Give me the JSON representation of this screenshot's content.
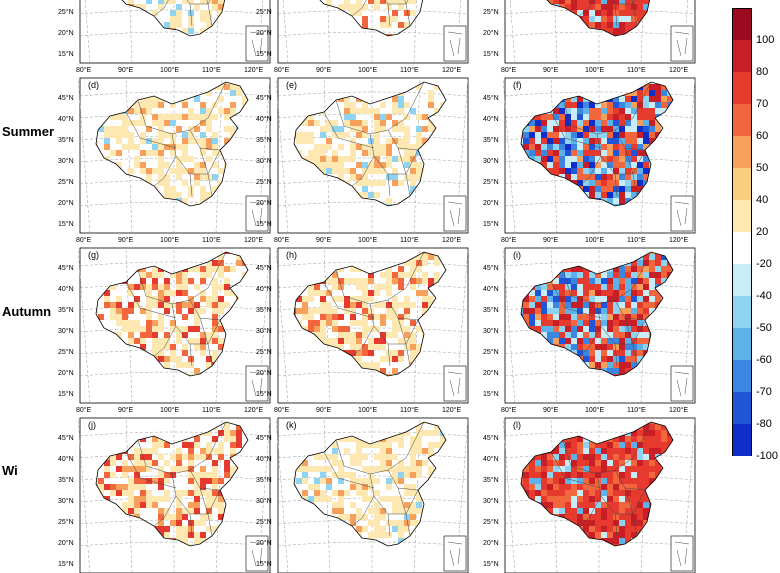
{
  "seasons": [
    "Summer",
    "Autumn",
    "Wi"
  ],
  "panels": [
    {
      "id": "a",
      "label": "",
      "pattern": "weak"
    },
    {
      "id": "b",
      "label": "",
      "pattern": "weak-south"
    },
    {
      "id": "c",
      "label": "",
      "pattern": "strong"
    },
    {
      "id": "d",
      "label": "(d)",
      "pattern": "weak"
    },
    {
      "id": "e",
      "label": "(e)",
      "pattern": "weak"
    },
    {
      "id": "f",
      "label": "(f)",
      "pattern": "mixed-blue"
    },
    {
      "id": "g",
      "label": "(g)",
      "pattern": "moderate"
    },
    {
      "id": "h",
      "label": "(h)",
      "pattern": "moderate"
    },
    {
      "id": "i",
      "label": "(i)",
      "pattern": "strong-mixed"
    },
    {
      "id": "j",
      "label": "(j)",
      "pattern": "moderate"
    },
    {
      "id": "k",
      "label": "(k)",
      "pattern": "weak"
    },
    {
      "id": "l",
      "label": "(l)",
      "pattern": "strong"
    }
  ],
  "lat_labels": [
    "45°N",
    "40°N",
    "35°N",
    "30°N",
    "25°N",
    "20°N",
    "15°N"
  ],
  "lon_labels": [
    "80°E",
    "90°E",
    "100°E",
    "110°E",
    "120°E"
  ],
  "colorbar": {
    "ticks": [
      "100",
      "80",
      "70",
      "60",
      "50",
      "40",
      "20",
      "-20",
      "-40",
      "-50",
      "-60",
      "-70",
      "-80",
      "-100"
    ],
    "colors": [
      "#9b0a1e",
      "#c81f26",
      "#e63a2f",
      "#f2663e",
      "#f7a05c",
      "#fbcd7f",
      "#fde8b2",
      "#ffffff",
      "#c8ecf8",
      "#8fd3f2",
      "#5db2ea",
      "#3b86e0",
      "#1f56d8",
      "#0f2ec7"
    ]
  }
}
